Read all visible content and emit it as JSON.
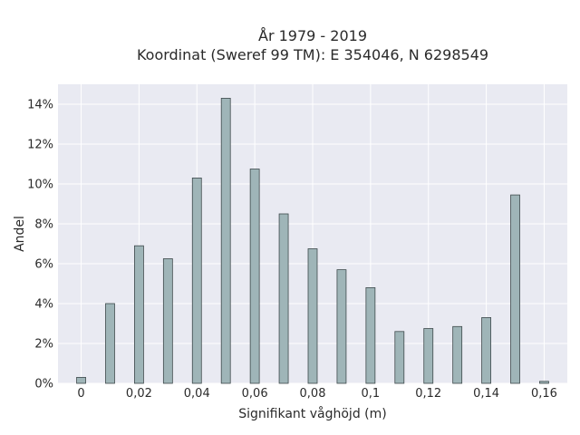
{
  "chart_data": {
    "type": "bar",
    "title": "År 1979 - 2019",
    "subtitle": "Koordinat (Sweref 99 TM): E 354046, N 6298549",
    "xlabel": "Signifikant våghöjd (m)",
    "ylabel": "Andel",
    "x": [
      0,
      0.01,
      0.02,
      0.03,
      0.04,
      0.05,
      0.06,
      0.07,
      0.08,
      0.09,
      0.1,
      0.11,
      0.12,
      0.13,
      0.14,
      0.15,
      0.16
    ],
    "values": [
      0.3,
      4.0,
      6.9,
      6.25,
      10.3,
      14.3,
      10.75,
      8.5,
      6.75,
      5.7,
      4.8,
      2.6,
      2.75,
      2.85,
      3.3,
      9.45,
      0.1
    ],
    "xlim": [
      -0.008,
      0.168
    ],
    "ylim": [
      0,
      15
    ],
    "x_ticks": [
      0,
      0.02,
      0.04,
      0.06,
      0.08,
      0.1,
      0.12,
      0.14,
      0.16
    ],
    "x_tick_labels": [
      "0",
      "0,02",
      "0,04",
      "0,06",
      "0,08",
      "0,1",
      "0,12",
      "0,14",
      "0,16"
    ],
    "y_ticks": [
      0,
      2,
      4,
      6,
      8,
      10,
      12,
      14
    ],
    "y_tick_labels": [
      "0%",
      "2%",
      "4%",
      "6%",
      "8%",
      "10%",
      "12%",
      "14%"
    ],
    "y_unit": "%",
    "grid": true,
    "colors": {
      "bar_fill": "#9fb5b8",
      "bar_stroke": "#3f4a4c",
      "plot_background": "#e9eaf2",
      "grid": "#ffffff"
    }
  }
}
